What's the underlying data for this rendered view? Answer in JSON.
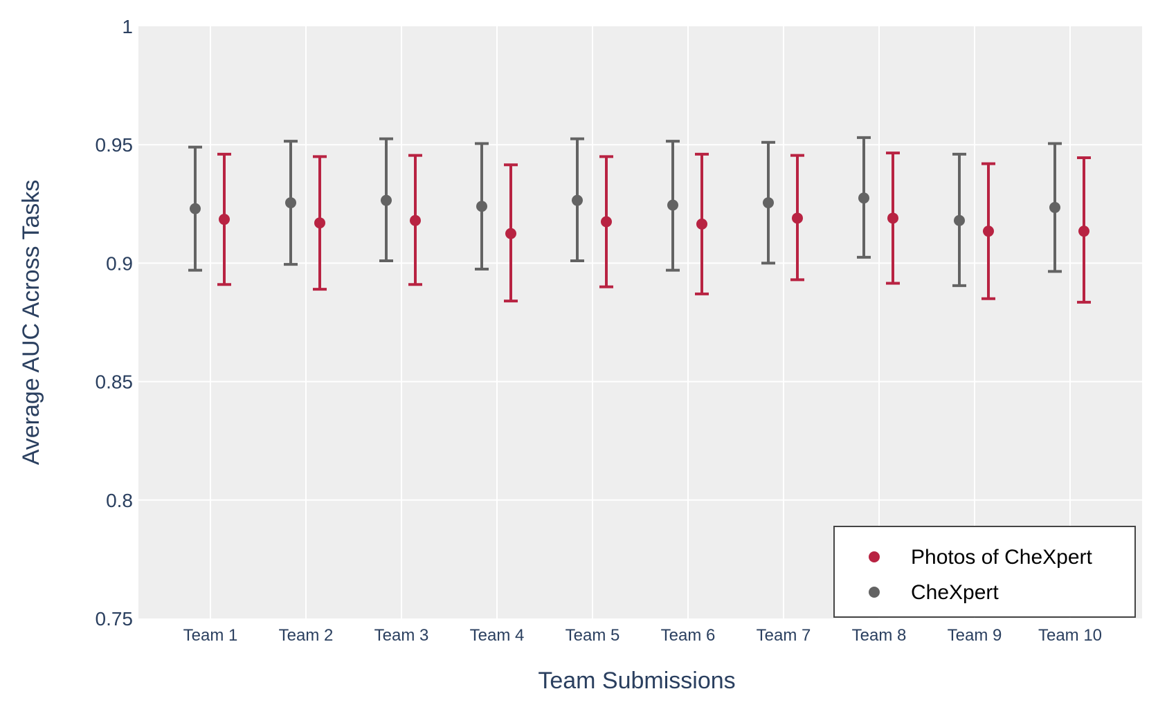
{
  "chart_data": {
    "type": "scatter",
    "xlabel": "Team Submissions",
    "ylabel": "Average AUC Across Tasks",
    "ylim": [
      0.75,
      1.0
    ],
    "yticks": [
      0.75,
      0.8,
      0.85,
      0.9,
      0.95,
      1
    ],
    "ytick_labels": [
      "0.75",
      "0.8",
      "0.85",
      "0.9",
      "0.95",
      "1"
    ],
    "categories": [
      "Team 1",
      "Team 2",
      "Team 3",
      "Team 4",
      "Team 5",
      "Team 6",
      "Team 7",
      "Team 8",
      "Team 9",
      "Team 10"
    ],
    "grid": true,
    "legend_position": "bottom-right",
    "series": [
      {
        "name": "CheXpert",
        "color": "#636363",
        "values": [
          0.923,
          0.9255,
          0.9265,
          0.924,
          0.9265,
          0.9245,
          0.9255,
          0.9275,
          0.918,
          0.9235
        ],
        "ci_low": [
          0.897,
          0.8995,
          0.901,
          0.8975,
          0.901,
          0.897,
          0.9,
          0.9025,
          0.8905,
          0.8965
        ],
        "ci_high": [
          0.949,
          0.9515,
          0.9525,
          0.9505,
          0.9525,
          0.9515,
          0.951,
          0.953,
          0.946,
          0.9505
        ]
      },
      {
        "name": "Photos of CheXpert",
        "color": "#b82342",
        "values": [
          0.9185,
          0.917,
          0.918,
          0.9125,
          0.9175,
          0.9165,
          0.919,
          0.919,
          0.9135,
          0.9135
        ],
        "ci_low": [
          0.891,
          0.889,
          0.891,
          0.884,
          0.89,
          0.887,
          0.893,
          0.8915,
          0.885,
          0.8835
        ],
        "ci_high": [
          0.946,
          0.945,
          0.9455,
          0.9415,
          0.945,
          0.946,
          0.9455,
          0.9465,
          0.942,
          0.9445
        ]
      }
    ],
    "legend_order": [
      "Photos of CheXpert",
      "CheXpert"
    ]
  }
}
